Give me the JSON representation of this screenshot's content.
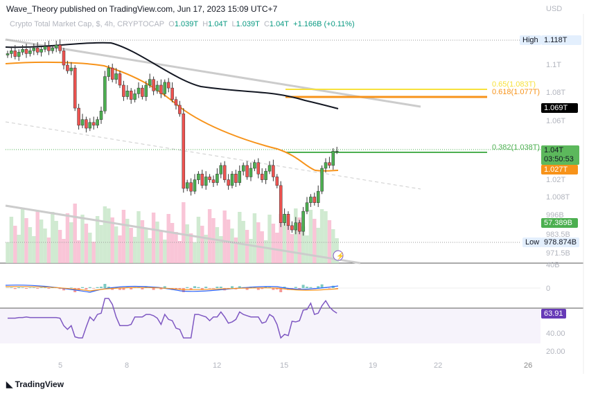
{
  "header": {
    "publish": "Wave_Theory published on TradingView.com, Jun 17, 2023 15:09 UTC+7"
  },
  "legend": {
    "symbol": "Crypto Total Market Cap, $, 4h, CRYPTOCAP",
    "o_label": "O",
    "o": "1.039T",
    "h_label": "H",
    "h": "1.04T",
    "l_label": "L",
    "l": "1.039T",
    "c_label": "C",
    "c": "1.04T",
    "change": "+1.166B (+0.11%)"
  },
  "price_axis": {
    "currency": "USD",
    "ticks": [
      "1.1T",
      "1.08T",
      "1.06T",
      "1.02T",
      "1.008T",
      "996B",
      "983.5B",
      "971.5B"
    ],
    "high_label": "High",
    "high": "1.118T",
    "low_label": "Low",
    "low": "978.874B",
    "ma200": "1.069T",
    "last_price": "1.04T",
    "countdown": "03:50:53",
    "ma50": "1.027T",
    "volume": "57.389B"
  },
  "fib": [
    {
      "label": "0.65(1.083T)",
      "color": "#f7e13b"
    },
    {
      "label": "0.618(1.077T)",
      "color": "#f7931a"
    },
    {
      "label": "0.382(1.038T)",
      "color": "#4caf50"
    }
  ],
  "macd_axis": {
    "ticks": [
      "40B",
      "0"
    ]
  },
  "rsi_axis": {
    "value": "63.91",
    "ticks": [
      "40.00",
      "20.00"
    ]
  },
  "time_axis": {
    "ticks": [
      "5",
      "8",
      "12",
      "15",
      "19",
      "22",
      "26"
    ]
  },
  "footer": {
    "brand": "TradingView"
  },
  "colors": {
    "up": "#4caf50",
    "down": "#ef5350",
    "ma50": "#f7931a",
    "ma200": "#131722",
    "rsi": "#7e57c2"
  },
  "chart_data": {
    "type": "candlestick",
    "title": "Crypto Total Market Cap, $, 4h, CRYPTOCAP",
    "ylabel": "USD (billions)",
    "ylim": [
      971.5,
      1118
    ],
    "x_ticks": [
      "5",
      "8",
      "12",
      "15",
      "19",
      "22",
      "26"
    ],
    "closes": [
      1108,
      1110,
      1106,
      1109,
      1111,
      1108,
      1110,
      1112,
      1109,
      1111,
      1113,
      1110,
      1112,
      1114,
      1110,
      1100,
      1096,
      1098,
      1070,
      1058,
      1062,
      1056,
      1060,
      1058,
      1062,
      1068,
      1092,
      1098,
      1090,
      1094,
      1086,
      1078,
      1082,
      1076,
      1080,
      1084,
      1078,
      1086,
      1090,
      1082,
      1086,
      1080,
      1088,
      1084,
      1076,
      1072,
      1066,
      1014,
      1018,
      1012,
      1020,
      1024,
      1016,
      1022,
      1020,
      1018,
      1024,
      1030,
      1020,
      1016,
      1024,
      1018,
      1026,
      1030,
      1022,
      1028,
      1032,
      1024,
      1020,
      1026,
      1030,
      1022,
      1016,
      990,
      996,
      988,
      985,
      990,
      984,
      998,
      1004,
      1008,
      1004,
      1012,
      1028,
      1032,
      1030,
      1040,
      1040
    ],
    "rsi_last": 63.91
  }
}
